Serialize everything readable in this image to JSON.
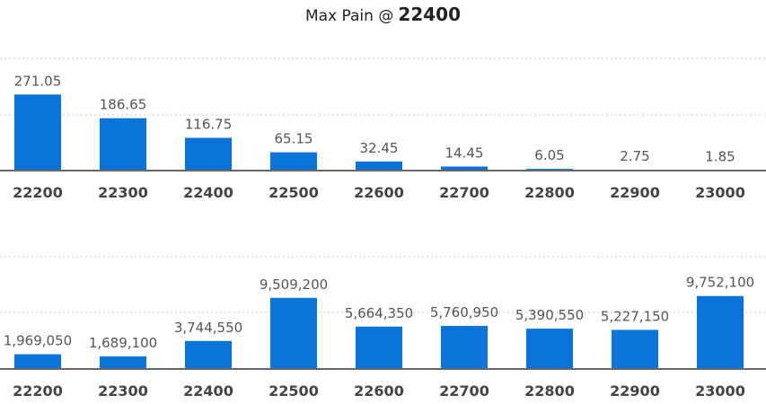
{
  "header": {
    "label": "Max Pain @",
    "value": "22400"
  },
  "chart_data": [
    {
      "type": "bar",
      "categories": [
        "22200",
        "22300",
        "22400",
        "22500",
        "22600",
        "22700",
        "22800",
        "22900",
        "23000"
      ],
      "values": [
        271.05,
        186.65,
        116.75,
        65.15,
        32.45,
        14.45,
        6.05,
        2.75,
        1.85
      ],
      "value_labels": [
        "271.05",
        "186.65",
        "116.75",
        "65.15",
        "32.45",
        "14.45",
        "6.05",
        "2.75",
        "1.85"
      ],
      "ylim": [
        0,
        400
      ],
      "grid": true,
      "color": "#0a74da"
    },
    {
      "type": "bar",
      "categories": [
        "22200",
        "22300",
        "22400",
        "22500",
        "22600",
        "22700",
        "22800",
        "22900",
        "23000"
      ],
      "values": [
        1969050,
        1689100,
        3744550,
        9509200,
        5664350,
        5760950,
        5390550,
        5227150,
        9752100
      ],
      "value_labels": [
        "1,969,050",
        "1,689,100",
        "3,744,550",
        "9,509,200",
        "5,664,350",
        "5,760,950",
        "5,390,550",
        "5,227,150",
        "9,752,100"
      ],
      "ylim": [
        0,
        15000000
      ],
      "grid": true,
      "color": "#0a74da"
    }
  ]
}
